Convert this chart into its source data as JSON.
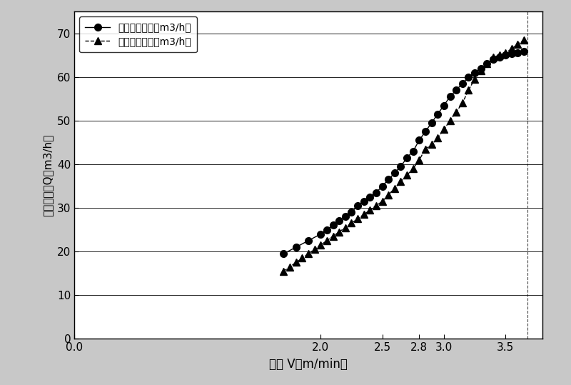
{
  "series1_label": "改进前总水量（m3/h）",
  "series2_label": "改进后总水量（m3/h）",
  "series1_x": [
    1.7,
    1.8,
    1.9,
    2.0,
    2.05,
    2.1,
    2.15,
    2.2,
    2.25,
    2.3,
    2.35,
    2.4,
    2.45,
    2.5,
    2.55,
    2.6,
    2.65,
    2.7,
    2.75,
    2.8,
    2.85,
    2.9,
    2.95,
    3.0,
    3.05,
    3.1,
    3.15,
    3.2,
    3.25,
    3.3,
    3.35,
    3.4,
    3.45,
    3.5,
    3.55,
    3.6,
    3.65
  ],
  "series1_y": [
    19.5,
    21.0,
    22.5,
    24.0,
    25.0,
    26.0,
    27.0,
    28.0,
    29.0,
    30.5,
    31.5,
    32.5,
    33.5,
    35.0,
    36.5,
    38.0,
    39.5,
    41.5,
    43.0,
    45.5,
    47.5,
    49.5,
    51.5,
    53.5,
    55.5,
    57.0,
    58.5,
    60.0,
    61.0,
    62.0,
    63.0,
    64.0,
    64.5,
    65.0,
    65.3,
    65.5,
    65.8
  ],
  "series2_x": [
    1.7,
    1.75,
    1.8,
    1.85,
    1.9,
    1.95,
    2.0,
    2.05,
    2.1,
    2.15,
    2.2,
    2.25,
    2.3,
    2.35,
    2.4,
    2.45,
    2.5,
    2.55,
    2.6,
    2.65,
    2.7,
    2.75,
    2.8,
    2.85,
    2.9,
    2.95,
    3.0,
    3.05,
    3.1,
    3.15,
    3.2,
    3.25,
    3.3,
    3.35,
    3.4,
    3.45,
    3.5,
    3.55,
    3.6,
    3.65
  ],
  "series2_y": [
    15.5,
    16.5,
    17.5,
    18.5,
    19.5,
    20.5,
    21.5,
    22.5,
    23.5,
    24.5,
    25.5,
    26.5,
    27.5,
    28.5,
    29.5,
    30.5,
    31.5,
    33.0,
    34.5,
    36.0,
    37.5,
    39.0,
    41.0,
    43.5,
    44.5,
    46.0,
    48.0,
    50.0,
    52.0,
    54.0,
    57.0,
    59.5,
    61.5,
    63.0,
    64.5,
    65.0,
    65.5,
    66.5,
    67.5,
    68.5
  ],
  "xlabel": "拉速 V（m/min）",
  "ylabel": "二冷总水量Q（m3/h）",
  "xlim": [
    0,
    3.8
  ],
  "ylim": [
    0,
    75
  ],
  "xticks": [
    0,
    2,
    2.5,
    2.8,
    3,
    3.5
  ],
  "yticks": [
    0,
    10,
    20,
    30,
    40,
    50,
    60,
    70
  ],
  "line1_color": "#000000",
  "line2_color": "#000000",
  "marker1": "o",
  "marker2": "^",
  "line1_style": "-",
  "line2_style": "--",
  "marker_size1": 7,
  "marker_size2": 7,
  "legend_loc": "upper left",
  "fig_bg_color": "#c8c8c8",
  "plot_bg_color": "#ffffff",
  "figsize": [
    8.0,
    5.39
  ],
  "dpi": 100,
  "right_dashed_x": 3.68
}
